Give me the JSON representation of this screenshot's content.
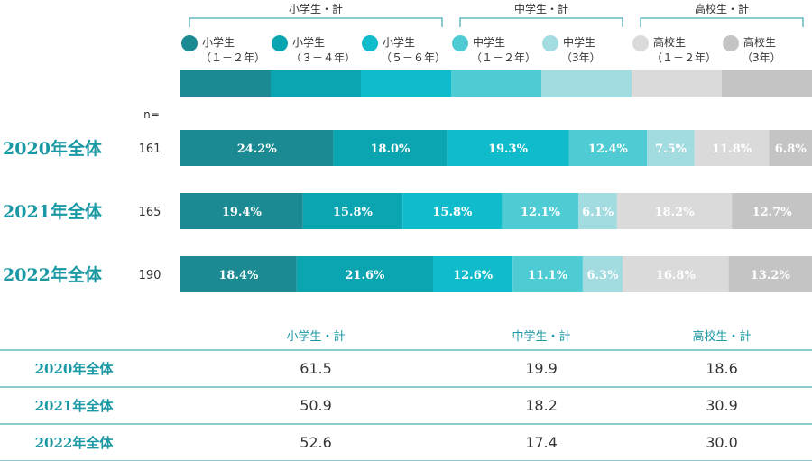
{
  "chart_data": {
    "type": "bar",
    "stacked": "100%",
    "groups": [
      {
        "label": "小学生・計",
        "series_count": 3
      },
      {
        "label": "中学生・計",
        "series_count": 2
      },
      {
        "label": "高校生・計",
        "series_count": 2
      }
    ],
    "series": [
      {
        "legend": [
          "小学生",
          "（１－２年）"
        ],
        "color": "#1b8a93",
        "values": [
          24.2,
          19.4,
          18.4
        ]
      },
      {
        "legend": [
          "小学生",
          "（３－４年）"
        ],
        "color": "#0aa5b0",
        "values": [
          18.0,
          15.8,
          21.6
        ]
      },
      {
        "legend": [
          "小学生",
          "（５－６年）"
        ],
        "color": "#10bccb",
        "values": [
          19.3,
          15.8,
          12.6
        ]
      },
      {
        "legend": [
          "中学生",
          "（１－２年）"
        ],
        "color": "#4ecbd3",
        "values": [
          12.4,
          12.1,
          11.1
        ]
      },
      {
        "legend": [
          "中学生",
          "（3年）"
        ],
        "color": "#a2dbe0",
        "values": [
          7.5,
          6.1,
          6.3
        ]
      },
      {
        "legend": [
          "高校生",
          "（１－２年）"
        ],
        "color": "#dadada",
        "values": [
          11.8,
          18.2,
          16.8
        ]
      },
      {
        "legend": [
          "高校生",
          "（3年）"
        ],
        "color": "#c4c4c4",
        "values": [
          6.8,
          12.7,
          13.2
        ]
      }
    ],
    "value_suffix": "%",
    "n_header": "n=",
    "categories": [
      "2020年全体",
      "2021年全体",
      "2022年全体"
    ],
    "n": [
      "161",
      "165",
      "190"
    ],
    "table": {
      "headers": [
        "小学生・計",
        "中学生・計",
        "高校生・計"
      ],
      "rows": [
        {
          "label": "2020年全体",
          "values": [
            "61.5",
            "19.9",
            "18.6"
          ]
        },
        {
          "label": "2021年全体",
          "values": [
            "50.9",
            "18.2",
            "30.9"
          ]
        },
        {
          "label": "2022年全体",
          "values": [
            "52.6",
            "17.4",
            "30.0"
          ]
        }
      ]
    }
  },
  "colors": {
    "accent": "#1a98a3",
    "bar_label_light": "#ffffff",
    "text": "#333333",
    "rule": "#1a98a3"
  }
}
